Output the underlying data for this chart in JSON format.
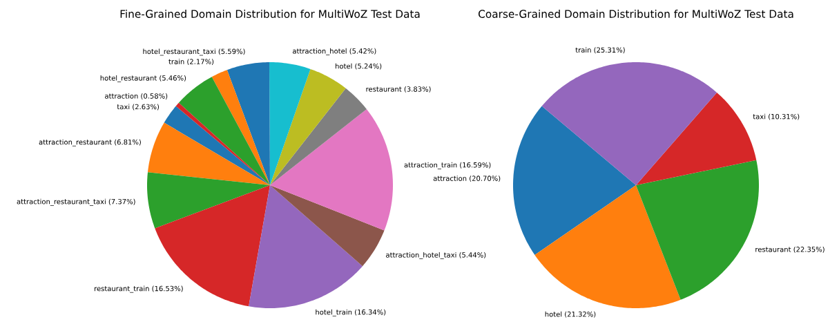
{
  "chart_data": [
    {
      "type": "pie",
      "title": "Fine-Grained Domain Distribution for MultiWoZ Test Data",
      "categories": [
        "taxi",
        "attraction_restaurant",
        "attraction_restaurant_taxi",
        "restaurant_train",
        "hotel_train",
        "attraction_hotel_taxi",
        "attraction_train",
        "restaurant",
        "hotel",
        "attraction_hotel",
        "hotel_restaurant_taxi",
        "train",
        "hotel_restaurant",
        "attraction"
      ],
      "values": [
        2.63,
        6.81,
        7.37,
        16.53,
        16.34,
        5.44,
        16.59,
        3.83,
        5.24,
        5.42,
        5.59,
        2.17,
        5.46,
        0.58
      ],
      "value_labels": [
        "(2.63%)",
        "(6.81%)",
        "(7.37%)",
        "(16.53%)",
        "(16.34%)",
        "(5.44%)",
        "(16.59%)",
        "(3.83%)",
        "(5.24%)",
        "(5.42%)",
        "(5.59%)",
        "(2.17%)",
        "(5.46%)",
        "(0.58%)"
      ],
      "colors": [
        "#1f77b4",
        "#ff7f0e",
        "#2ca02c",
        "#d62728",
        "#9467bd",
        "#8c564b",
        "#e377c2",
        "#7f7f7f",
        "#bcbd22",
        "#17becf",
        "#1f77b4",
        "#ff7f0e",
        "#2ca02c",
        "#d62728"
      ]
    },
    {
      "type": "pie",
      "title": "Coarse-Grained Domain Distribution for MultiWoZ Test Data",
      "categories": [
        "attraction",
        "hotel",
        "restaurant",
        "taxi",
        "train"
      ],
      "values": [
        20.7,
        21.32,
        22.35,
        10.31,
        25.31
      ],
      "value_labels": [
        "(20.70%)",
        "(21.32%)",
        "(22.35%)",
        "(10.31%)",
        "(25.31%)"
      ],
      "colors": [
        "#1f77b4",
        "#ff7f0e",
        "#2ca02c",
        "#d62728",
        "#9467bd"
      ]
    }
  ]
}
